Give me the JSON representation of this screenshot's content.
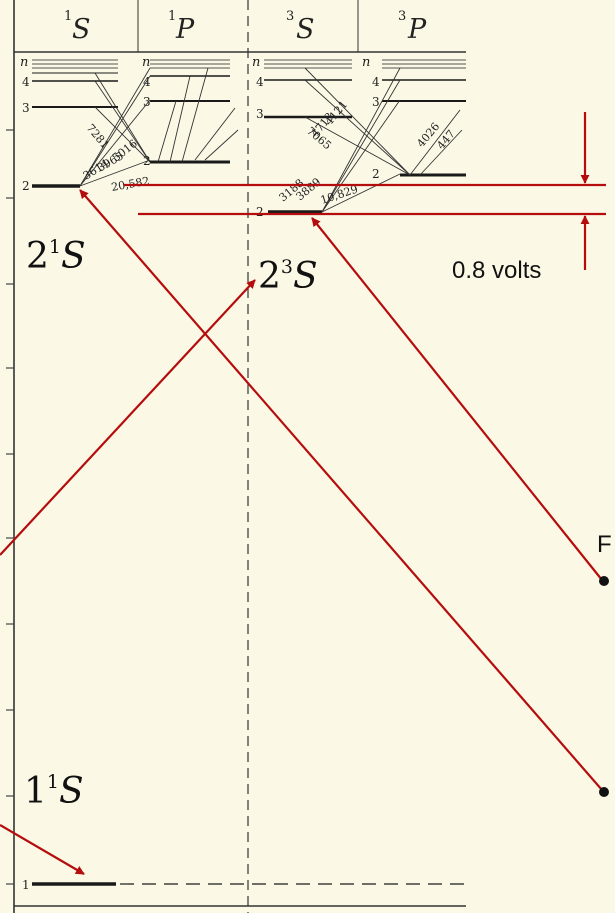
{
  "columns": {
    "s1": {
      "sup": "1",
      "letter": "S"
    },
    "p1": {
      "sup": "1",
      "letter": "P"
    },
    "s3": {
      "sup": "3",
      "letter": "S"
    },
    "p3": {
      "sup": "3",
      "letter": "P"
    }
  },
  "n_label": "n",
  "level_labels": {
    "s1": [
      "4",
      "3",
      "2",
      "1"
    ],
    "p1": [
      "4",
      "3",
      "2"
    ],
    "s3": [
      "4",
      "3",
      "2"
    ],
    "p3": [
      "4",
      "3",
      "2"
    ]
  },
  "wavelengths": {
    "s1_7281": "7281",
    "s1_3614": "3614",
    "s1_3965": "3965",
    "s1_5016": "5016",
    "s1_20582": "20,582",
    "s3_7065": "7065",
    "s3_4713": "4713",
    "s3_4121": "4121",
    "s3_3188": "3188",
    "s3_3889": "3889",
    "s3_10829": "10,829",
    "p3_4026": "4026",
    "p3_447": "447"
  },
  "annotations": {
    "s21_num": "2",
    "s21_sup": "1",
    "s21_letter": "S",
    "s23_num": "2",
    "s23_sup": "3",
    "s23_letter": "S",
    "s11_num": "1",
    "s11_sup": "1",
    "s11_letter": "S",
    "gap": "0.8 volts",
    "partial_text": "F"
  },
  "colors": {
    "background": "#fbf9e6",
    "ink": "#222222",
    "annotation": "#b50d0d"
  }
}
